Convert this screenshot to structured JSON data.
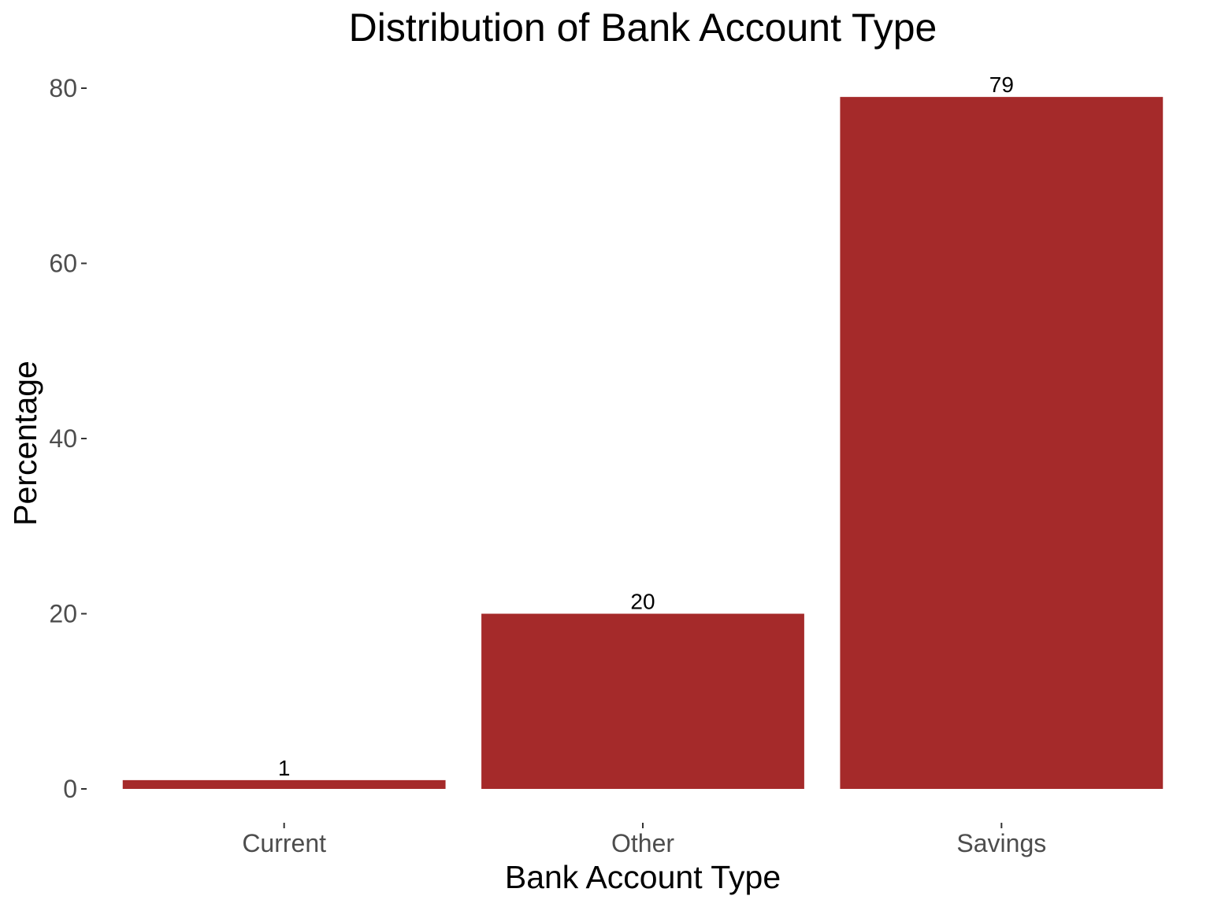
{
  "chart_data": {
    "type": "bar",
    "title": "Distribution of Bank Account Type",
    "xlabel": "Bank Account Type",
    "ylabel": "Percentage",
    "categories": [
      "Current",
      "Other",
      "Savings"
    ],
    "values": [
      1,
      20,
      79
    ],
    "data_labels": [
      "1",
      "20",
      "79"
    ],
    "yticks": [
      0,
      20,
      40,
      60,
      80
    ],
    "ylim": [
      0,
      80
    ],
    "grid": false,
    "legend": "none",
    "bar_color": "#a52a2a"
  }
}
